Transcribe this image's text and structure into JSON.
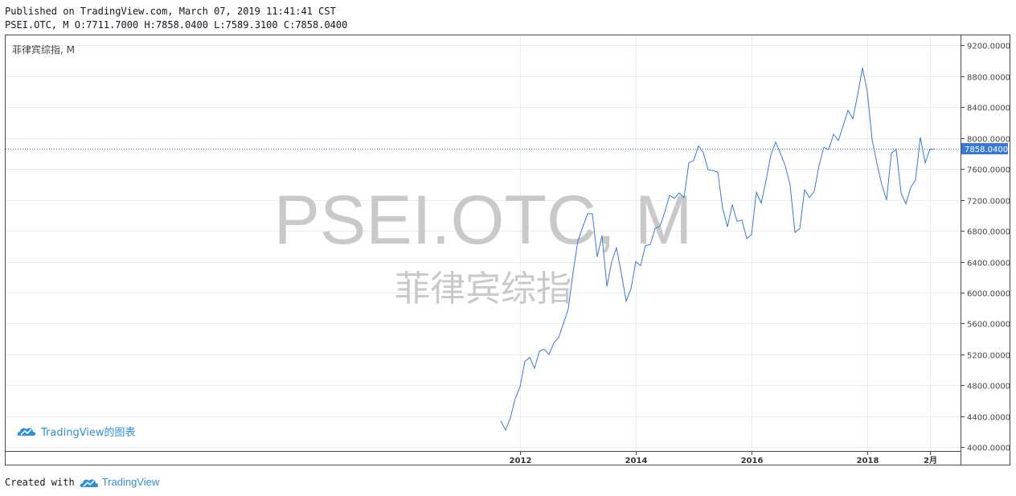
{
  "header": {
    "published_line": "Published on TradingView.com, March 07, 2019 11:41:41 CST",
    "symbol": "PSEI.OTC, M",
    "ohlc": {
      "o_label": "O:",
      "o": "7711.7000",
      "h_label": "H:",
      "h": "7858.0400",
      "l_label": "L:",
      "l": "7589.3100",
      "c_label": "C:",
      "c": "7858.0400"
    }
  },
  "pane_legend": "菲律宾综指, M",
  "watermark": {
    "symbol": "PSEI.OTC, M",
    "name": "菲律宾综指"
  },
  "branding": {
    "inside_chart": "TradingView的图表",
    "created_with_label": "Created with",
    "brand": "TradingView"
  },
  "colors": {
    "line": "#3b78d0",
    "last_price_tag": "#3b78d0",
    "grid": "#e8edf3",
    "watermark": "#c9c9c9",
    "brand": "#2f8fd8"
  },
  "chart_data": {
    "type": "line",
    "interval": "M",
    "title": "菲律宾综指, M",
    "ylim": [
      3950,
      9330
    ],
    "y_ticks": [
      "4000.0000",
      "4400.0000",
      "4800.0000",
      "5200.0000",
      "5600.0000",
      "6000.0000",
      "6400.0000",
      "6800.0000",
      "7200.0000",
      "7600.0000",
      "8000.0000",
      "8400.0000",
      "8800.0000",
      "9200.0000"
    ],
    "x_ticks": [
      "2012",
      "2014",
      "2016",
      "2018",
      "2月"
    ],
    "x_tick_dates": [
      "2012-01",
      "2014-01",
      "2016-01",
      "2018-01",
      "2019-02"
    ],
    "last_value": "7858.0400",
    "grid": true,
    "series": [
      {
        "x": [
          "2011-09",
          "2011-10",
          "2011-11",
          "2011-12",
          "2012-01",
          "2012-02",
          "2012-03",
          "2012-04",
          "2012-05",
          "2012-06",
          "2012-07",
          "2012-08",
          "2012-09",
          "2012-10",
          "2012-11",
          "2012-12",
          "2013-01",
          "2013-02",
          "2013-03",
          "2013-04",
          "2013-05",
          "2013-06",
          "2013-07",
          "2013-08",
          "2013-09",
          "2013-10",
          "2013-11",
          "2013-12",
          "2014-01",
          "2014-02",
          "2014-03",
          "2014-04",
          "2014-05",
          "2014-06",
          "2014-07",
          "2014-08",
          "2014-09",
          "2014-10",
          "2014-11",
          "2014-12",
          "2015-01",
          "2015-02",
          "2015-03",
          "2015-04",
          "2015-05",
          "2015-06",
          "2015-07",
          "2015-08",
          "2015-09",
          "2015-10",
          "2015-11",
          "2015-12",
          "2016-01",
          "2016-02",
          "2016-03",
          "2016-04",
          "2016-05",
          "2016-06",
          "2016-07",
          "2016-08",
          "2016-09",
          "2016-10",
          "2016-11",
          "2016-12",
          "2017-01",
          "2017-02",
          "2017-03",
          "2017-04",
          "2017-05",
          "2017-06",
          "2017-07",
          "2017-08",
          "2017-09",
          "2017-10",
          "2017-11",
          "2017-12",
          "2018-01",
          "2018-02",
          "2018-03",
          "2018-04",
          "2018-05",
          "2018-06",
          "2018-07",
          "2018-08",
          "2018-09",
          "2018-10",
          "2018-11",
          "2018-12",
          "2019-01",
          "2019-02",
          "2019-03"
        ],
        "values": [
          4340,
          4220,
          4380,
          4630,
          4780,
          5110,
          5160,
          5020,
          5240,
          5270,
          5200,
          5350,
          5420,
          5600,
          5790,
          6270,
          6670,
          6850,
          7020,
          7020,
          6460,
          6740,
          6080,
          6400,
          6580,
          6250,
          5890,
          6050,
          6400,
          6350,
          6610,
          6620,
          6830,
          6860,
          7040,
          7260,
          7220,
          7290,
          7230,
          7680,
          7710,
          7900,
          7810,
          7590,
          7580,
          7560,
          7090,
          6850,
          7140,
          6920,
          6940,
          6700,
          6750,
          7300,
          7160,
          7450,
          7780,
          7950,
          7800,
          7640,
          7390,
          6780,
          6830,
          7330,
          7230,
          7310,
          7650,
          7880,
          7850,
          8050,
          7970,
          8160,
          8360,
          8250,
          8560,
          8910,
          8600,
          7980,
          7670,
          7400,
          7200,
          7810,
          7850,
          7290,
          7150,
          7360,
          7460,
          8010,
          7680,
          7858.04,
          7858.04
        ]
      }
    ]
  }
}
